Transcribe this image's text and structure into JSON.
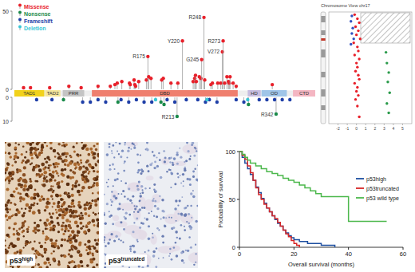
{
  "chart_data": [
    {
      "type": "lollipop",
      "xlim": [
        1,
        393
      ],
      "ylim": [
        0,
        50
      ],
      "yticks": [
        0,
        50
      ],
      "y2lim": [
        0,
        10
      ],
      "y2ticks": [
        0,
        10
      ],
      "tick_labels": "y",
      "legend": "top-left",
      "domains": [
        {
          "name": "TAD1",
          "start": 1,
          "end": 40,
          "color": "#f2d21b"
        },
        {
          "name": "TAD2",
          "start": 41,
          "end": 61,
          "color": "#f6e79a"
        },
        {
          "name": "PRR",
          "start": 64,
          "end": 92,
          "color": "#c4c4c4"
        },
        {
          "name": "DBD",
          "start": 102,
          "end": 292,
          "color": "#ef7f6e"
        },
        {
          "name": "HD",
          "start": 305,
          "end": 322,
          "color": "#c7bde0"
        },
        {
          "name": "OD",
          "start": 323,
          "end": 356,
          "color": "#9fc5e8"
        },
        {
          "name": "CTD",
          "start": 364,
          "end": 393,
          "color": "#f4b6c2"
        }
      ],
      "series": [
        {
          "name": "Missense",
          "color": "#e8202a",
          "x": [
            13,
            22,
            47,
            72,
            88,
            110,
            126,
            132,
            135,
            141,
            151,
            152,
            157,
            158,
            159,
            163,
            173,
            175,
            176,
            179,
            193,
            195,
            205,
            214,
            220,
            234,
            236,
            237,
            238,
            242,
            244,
            245,
            248,
            249,
            257,
            259,
            266,
            270,
            272,
            273,
            275,
            278,
            280,
            281,
            282,
            286,
            290,
            337
          ],
          "values": [
            1,
            1,
            1,
            2,
            1,
            2,
            2,
            3,
            4,
            5,
            4,
            3,
            6,
            3,
            2,
            5,
            6,
            21,
            8,
            7,
            6,
            7,
            4,
            4,
            31,
            5,
            7,
            9,
            5,
            8,
            7,
            19,
            46,
            6,
            3,
            4,
            4,
            4,
            24,
            31,
            4,
            8,
            5,
            4,
            8,
            4,
            2,
            3
          ]
        },
        {
          "name": "Nonsense",
          "color": "#1a8a4a",
          "axis": "y2",
          "x": [
            65,
            136,
            192,
            196,
            213,
            306,
            342
          ],
          "values": [
            1,
            2,
            2,
            3,
            8,
            3,
            7
          ]
        },
        {
          "name": "Frameshift",
          "color": "#1f3fa8",
          "axis": "y2",
          "x": [
            30,
            50,
            90,
            100,
            110,
            120,
            140,
            150,
            160,
            170,
            180,
            200,
            210,
            225,
            240,
            250,
            255,
            265,
            290,
            300,
            320,
            330,
            340,
            350,
            360
          ],
          "values": [
            1,
            1,
            2,
            2,
            1,
            2,
            1,
            2,
            1,
            2,
            2,
            1,
            2,
            1,
            1,
            2,
            1,
            2,
            1,
            2,
            1,
            1,
            1,
            1,
            1
          ]
        },
        {
          "name": "Deletion",
          "color": "#39c6d6",
          "axis": "y2",
          "x": [
            185,
            252,
            305
          ],
          "values": [
            1,
            1,
            1
          ]
        }
      ],
      "annotations": [
        {
          "text": "R175",
          "x": 175,
          "y": 21
        },
        {
          "text": "Y220",
          "x": 220,
          "y": 31
        },
        {
          "text": "G245",
          "x": 245,
          "y": 19
        },
        {
          "text": "R248",
          "x": 248,
          "y": 46
        },
        {
          "text": "V272",
          "x": 272,
          "y": 24
        },
        {
          "text": "R273",
          "x": 273,
          "y": 31
        },
        {
          "text": "R213",
          "x": 213,
          "y": 8,
          "axis": "y2"
        },
        {
          "text": "R342",
          "x": 342,
          "y": 7,
          "axis": "y2"
        }
      ]
    },
    {
      "type": "scatter",
      "title": "Chromosome View chr17",
      "xlim": [
        -3,
        6
      ],
      "xticks": [
        -2,
        -1,
        0,
        1,
        2,
        3,
        4,
        5
      ],
      "ylim": [
        0,
        83
      ],
      "tick_labels": "x",
      "series": [
        {
          "color": "#e8202a",
          "x": [
            -0.2,
            0.1,
            0.3,
            -0.1,
            0.2,
            0,
            0.4,
            -0.3,
            0.1,
            0.2,
            -0.2,
            0.3,
            0,
            0.1,
            -0.1,
            0.2,
            0.3,
            -0.2,
            0.1,
            0,
            0.2,
            -0.1,
            0.1,
            0.3
          ],
          "values": [
            2,
            5,
            8,
            11,
            14,
            17,
            20,
            23,
            26,
            29,
            32,
            35,
            38,
            41,
            44,
            47,
            50,
            53,
            56,
            59,
            62,
            65,
            70,
            78
          ]
        },
        {
          "color": "#3050c0",
          "x": [
            -0.5,
            -0.6,
            -0.4,
            -0.5,
            -0.3,
            -0.6
          ],
          "values": [
            3,
            7,
            12,
            16,
            20,
            24
          ]
        },
        {
          "color": "#2a9a4a",
          "x": [
            3.2,
            3.3,
            3.5,
            3.4,
            3.6,
            3.3,
            3.5
          ],
          "values": [
            30,
            38,
            45,
            52,
            60,
            68,
            75
          ]
        }
      ]
    },
    {
      "type": "line",
      "line_style": "step",
      "xlabel": "Overall survival (months)",
      "ylabel": "Probability of survival",
      "xlim": [
        0,
        60
      ],
      "xticks": [
        0,
        20,
        40,
        60
      ],
      "ylim": [
        0,
        100
      ],
      "yticks": [
        0,
        50,
        100
      ],
      "legend": "right",
      "series": [
        {
          "name": "p53high",
          "color": "#1c4ea0",
          "x": [
            0,
            1,
            2,
            3,
            4,
            5,
            6,
            7,
            8,
            9,
            10,
            11,
            12,
            13,
            14,
            15,
            16,
            17,
            18,
            19,
            20,
            22,
            25,
            30,
            35
          ],
          "values": [
            100,
            94,
            88,
            82,
            76,
            70,
            63,
            57,
            51,
            46,
            41,
            37,
            33,
            29,
            25,
            22,
            18,
            15,
            12,
            10,
            8,
            6,
            4,
            2,
            0
          ]
        },
        {
          "name": "p53truncated",
          "color": "#d62728",
          "x": [
            0,
            1,
            2,
            3,
            4,
            5,
            6,
            7,
            8,
            9,
            10,
            11,
            12,
            13,
            14,
            15,
            16,
            17,
            18,
            19,
            20,
            21,
            22
          ],
          "values": [
            100,
            96,
            92,
            85,
            78,
            70,
            62,
            55,
            50,
            45,
            41,
            37,
            33,
            30,
            26,
            22,
            18,
            14,
            11,
            7,
            4,
            2,
            0
          ]
        },
        {
          "name": "p53 wild type",
          "color": "#4cb84c",
          "x": [
            0,
            1,
            2,
            3,
            4,
            6,
            8,
            10,
            12,
            14,
            16,
            18,
            20,
            22,
            24,
            26,
            28,
            30,
            40,
            54
          ],
          "values": [
            100,
            97,
            94,
            91,
            88,
            85,
            82,
            79,
            77,
            75,
            72,
            70,
            68,
            65,
            62,
            59,
            56,
            53,
            27,
            27
          ]
        }
      ]
    }
  ],
  "images": [
    {
      "label": "p53",
      "label_sup": "high"
    },
    {
      "label": "p53",
      "label_sup": "truncated"
    }
  ]
}
